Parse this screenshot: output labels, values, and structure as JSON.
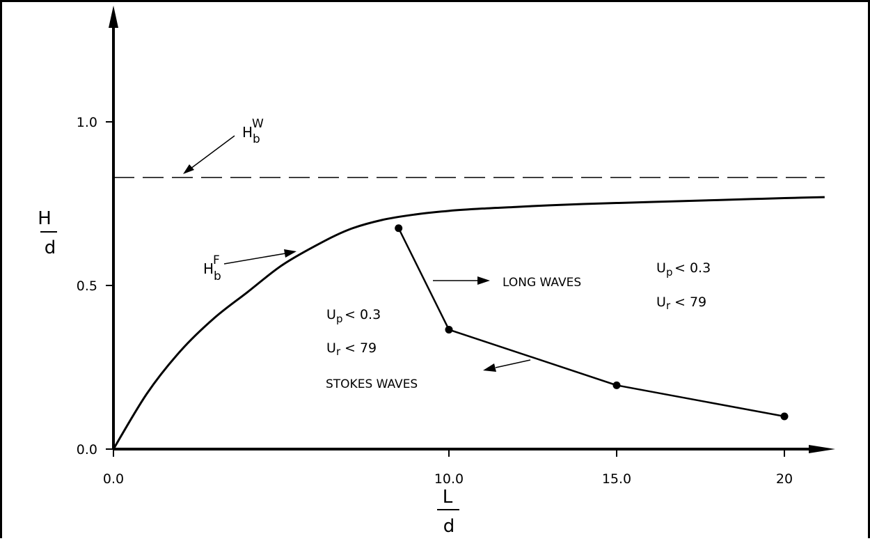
{
  "chart_data": {
    "type": "line",
    "xaxis": {
      "label_num": "L",
      "label_den": "d",
      "ticks": [
        {
          "value": 0,
          "label": "0.0"
        },
        {
          "value": 10,
          "label": "10.0"
        },
        {
          "value": 15,
          "label": "15.0"
        },
        {
          "value": 20,
          "label": "20"
        }
      ],
      "range": [
        0,
        21.2
      ]
    },
    "yaxis": {
      "label_num": "H",
      "label_den": "d",
      "ticks": [
        {
          "value": 0,
          "label": "0.0"
        },
        {
          "value": 0.5,
          "label": "0.5"
        },
        {
          "value": 1.0,
          "label": "1.0"
        }
      ],
      "range": [
        0,
        1.28
      ]
    },
    "series": [
      {
        "id": "hbw",
        "style": "dashed",
        "x": [
          0,
          21.2
        ],
        "y": [
          0.83,
          0.83
        ]
      },
      {
        "id": "hbf",
        "style": "solid",
        "x": [
          0,
          1,
          2,
          3,
          4,
          5,
          6,
          7,
          8,
          9,
          10,
          11,
          12,
          13,
          14,
          15,
          16,
          17,
          18,
          19,
          20,
          21.2
        ],
        "y": [
          0.0,
          0.17,
          0.3,
          0.4,
          0.48,
          0.56,
          0.62,
          0.67,
          0.7,
          0.717,
          0.728,
          0.735,
          0.74,
          0.745,
          0.749,
          0.752,
          0.755,
          0.758,
          0.761,
          0.764,
          0.767,
          0.77
        ]
      },
      {
        "id": "boundary",
        "style": "solid-markers",
        "x": [
          8.5,
          10.0,
          15.0,
          20.0
        ],
        "y": [
          0.675,
          0.365,
          0.195,
          0.1
        ]
      }
    ],
    "annotations": {
      "hbw": {
        "main": "H",
        "sub": "b",
        "sup": "W"
      },
      "hbf": {
        "main": "H",
        "sub": "b",
        "sup": "F"
      },
      "long_waves": "LONG WAVES",
      "stokes_waves": "STOKES WAVES",
      "right_region": {
        "up": {
          "main": "U",
          "sub": "p",
          "rest": "< 0.3"
        },
        "ur": {
          "main": "U",
          "sub": "r",
          "rest": "< 79"
        }
      },
      "left_region": {
        "up": {
          "main": "U",
          "sub": "p",
          "rest": "< 0.3"
        },
        "ur": {
          "main": "U",
          "sub": "r",
          "rest": "< 79"
        }
      }
    }
  }
}
